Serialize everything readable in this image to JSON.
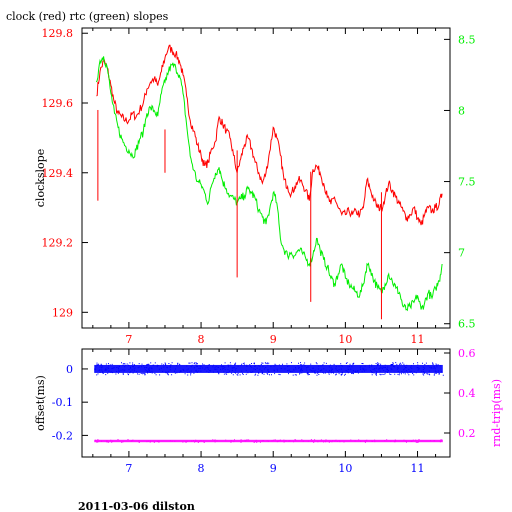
{
  "title": "clock (red) rtc (green) slopes",
  "footer": "2011-03-06 dilston",
  "colors": {
    "clock": "#ff0000",
    "rtc": "#00ee00",
    "offset": "#0000ff",
    "rtrip": "#ff00ff",
    "frame": "#000000"
  },
  "chart_data": [
    {
      "type": "line",
      "title": "clock (red) rtc (green) slopes",
      "ylabel": "clockslope",
      "xlim": [
        6.35,
        11.45
      ],
      "ylim": [
        128.955,
        129.815
      ],
      "y2lim": [
        6.47,
        8.58
      ],
      "xticks": [
        "7",
        "8",
        "9",
        "10",
        "11"
      ],
      "yticks_left": [
        "129",
        "129.2",
        "129.4",
        "129.6",
        "129.8"
      ],
      "yticks_right": [
        "6.5",
        "7",
        "7.5",
        "8",
        "8.5"
      ],
      "series": [
        {
          "name": "clock",
          "axis": "left",
          "x": [
            6.55,
            6.6,
            6.65,
            6.7,
            6.75,
            6.8,
            6.85,
            6.9,
            6.95,
            7.0,
            7.05,
            7.1,
            7.15,
            7.2,
            7.25,
            7.3,
            7.35,
            7.4,
            7.45,
            7.5,
            7.55,
            7.6,
            7.65,
            7.7,
            7.75,
            7.8,
            7.85,
            7.9,
            7.95,
            8.0,
            8.05,
            8.1,
            8.15,
            8.2,
            8.25,
            8.3,
            8.35,
            8.4,
            8.45,
            8.5,
            8.55,
            8.6,
            8.65,
            8.7,
            8.75,
            8.8,
            8.85,
            8.9,
            8.95,
            9.0,
            9.05,
            9.1,
            9.15,
            9.2,
            9.25,
            9.3,
            9.35,
            9.4,
            9.45,
            9.5,
            9.55,
            9.6,
            9.65,
            9.7,
            9.75,
            9.8,
            9.85,
            9.9,
            9.95,
            10.0,
            10.05,
            10.1,
            10.15,
            10.2,
            10.25,
            10.3,
            10.35,
            10.4,
            10.45,
            10.5,
            10.55,
            10.6,
            10.65,
            10.7,
            10.75,
            10.8,
            10.85,
            10.9,
            10.95,
            11.0,
            11.05,
            11.1,
            11.15,
            11.2,
            11.25,
            11.3,
            11.34
          ],
          "y": [
            129.62,
            129.69,
            129.72,
            129.7,
            129.65,
            129.6,
            129.57,
            129.56,
            129.55,
            129.55,
            129.57,
            129.56,
            129.58,
            129.6,
            129.64,
            129.66,
            129.67,
            129.65,
            129.69,
            129.73,
            129.76,
            129.75,
            129.74,
            129.72,
            129.68,
            129.62,
            129.55,
            129.52,
            129.48,
            129.45,
            129.42,
            129.43,
            129.47,
            129.49,
            129.56,
            129.54,
            129.52,
            129.5,
            129.45,
            129.4,
            129.44,
            129.48,
            129.5,
            129.47,
            129.43,
            129.4,
            129.37,
            129.4,
            129.46,
            129.53,
            129.5,
            129.45,
            129.38,
            129.36,
            129.34,
            129.36,
            129.38,
            129.37,
            129.35,
            129.32,
            129.41,
            129.42,
            129.4,
            129.37,
            129.33,
            129.31,
            129.33,
            129.3,
            129.28,
            129.28,
            129.29,
            129.28,
            129.29,
            129.28,
            129.3,
            129.38,
            129.35,
            129.32,
            129.3,
            129.3,
            129.33,
            129.37,
            129.35,
            129.33,
            129.31,
            129.29,
            129.27,
            129.28,
            129.3,
            129.27,
            129.25,
            129.28,
            129.3,
            129.29,
            129.3,
            129.31,
            129.34
          ]
        },
        {
          "name": "rtc",
          "axis": "right",
          "x": [
            6.55,
            6.6,
            6.65,
            6.7,
            6.75,
            6.8,
            6.85,
            6.9,
            6.95,
            7.0,
            7.05,
            7.1,
            7.15,
            7.2,
            7.25,
            7.3,
            7.35,
            7.4,
            7.45,
            7.5,
            7.55,
            7.6,
            7.65,
            7.7,
            7.75,
            7.8,
            7.85,
            7.9,
            7.95,
            8.0,
            8.05,
            8.1,
            8.15,
            8.2,
            8.25,
            8.3,
            8.35,
            8.4,
            8.45,
            8.5,
            8.55,
            8.6,
            8.65,
            8.7,
            8.75,
            8.8,
            8.85,
            8.9,
            8.95,
            9.0,
            9.05,
            9.1,
            9.15,
            9.2,
            9.25,
            9.3,
            9.35,
            9.4,
            9.45,
            9.5,
            9.55,
            9.6,
            9.65,
            9.7,
            9.75,
            9.8,
            9.85,
            9.9,
            9.95,
            10.0,
            10.05,
            10.1,
            10.15,
            10.2,
            10.25,
            10.3,
            10.35,
            10.4,
            10.45,
            10.5,
            10.55,
            10.6,
            10.65,
            10.7,
            10.75,
            10.8,
            10.85,
            10.9,
            10.95,
            11.0,
            11.05,
            11.1,
            11.15,
            11.2,
            11.25,
            11.3,
            11.34
          ],
          "y": [
            8.2,
            8.35,
            8.38,
            8.3,
            8.12,
            7.98,
            7.88,
            7.8,
            7.75,
            7.72,
            7.68,
            7.72,
            7.8,
            7.85,
            7.98,
            8.02,
            8.0,
            7.96,
            8.12,
            8.2,
            8.28,
            8.32,
            8.3,
            8.25,
            8.12,
            7.9,
            7.68,
            7.58,
            7.5,
            7.48,
            7.42,
            7.35,
            7.48,
            7.56,
            7.6,
            7.5,
            7.45,
            7.4,
            7.38,
            7.35,
            7.38,
            7.4,
            7.45,
            7.42,
            7.38,
            7.3,
            7.25,
            7.2,
            7.3,
            7.42,
            7.35,
            7.1,
            7.02,
            6.98,
            7.0,
            6.98,
            7.02,
            7.0,
            6.96,
            6.92,
            6.98,
            7.1,
            7.02,
            6.95,
            6.9,
            6.82,
            6.78,
            6.85,
            6.92,
            6.82,
            6.78,
            6.75,
            6.72,
            6.7,
            6.78,
            6.92,
            6.88,
            6.8,
            6.75,
            6.72,
            6.78,
            6.85,
            6.8,
            6.75,
            6.72,
            6.62,
            6.6,
            6.62,
            6.65,
            6.7,
            6.6,
            6.65,
            6.72,
            6.68,
            6.75,
            6.8,
            6.92
          ]
        }
      ]
    },
    {
      "type": "scatter",
      "ylabel": "offset(ms)",
      "y2label": "rnd-trip(ms)",
      "xlim": [
        6.35,
        11.45
      ],
      "ylim": [
        -0.265,
        0.06
      ],
      "y2lim": [
        0.08,
        0.62
      ],
      "xticks": [
        "7",
        "8",
        "9",
        "10",
        "11"
      ],
      "yticks_left": [
        "0",
        "-0.1",
        "-0.2"
      ],
      "yticks_right": [
        "0.2",
        "0.4",
        "0.6"
      ],
      "series": [
        {
          "name": "offset",
          "axis": "left",
          "x_range": [
            6.52,
            11.35
          ],
          "y_center": 0.0,
          "y_spread": 0.012
        },
        {
          "name": "rnd-trip",
          "axis": "right",
          "x_range": [
            6.52,
            11.35
          ],
          "y_center": 0.16,
          "y_spread": 0.006
        }
      ]
    }
  ]
}
